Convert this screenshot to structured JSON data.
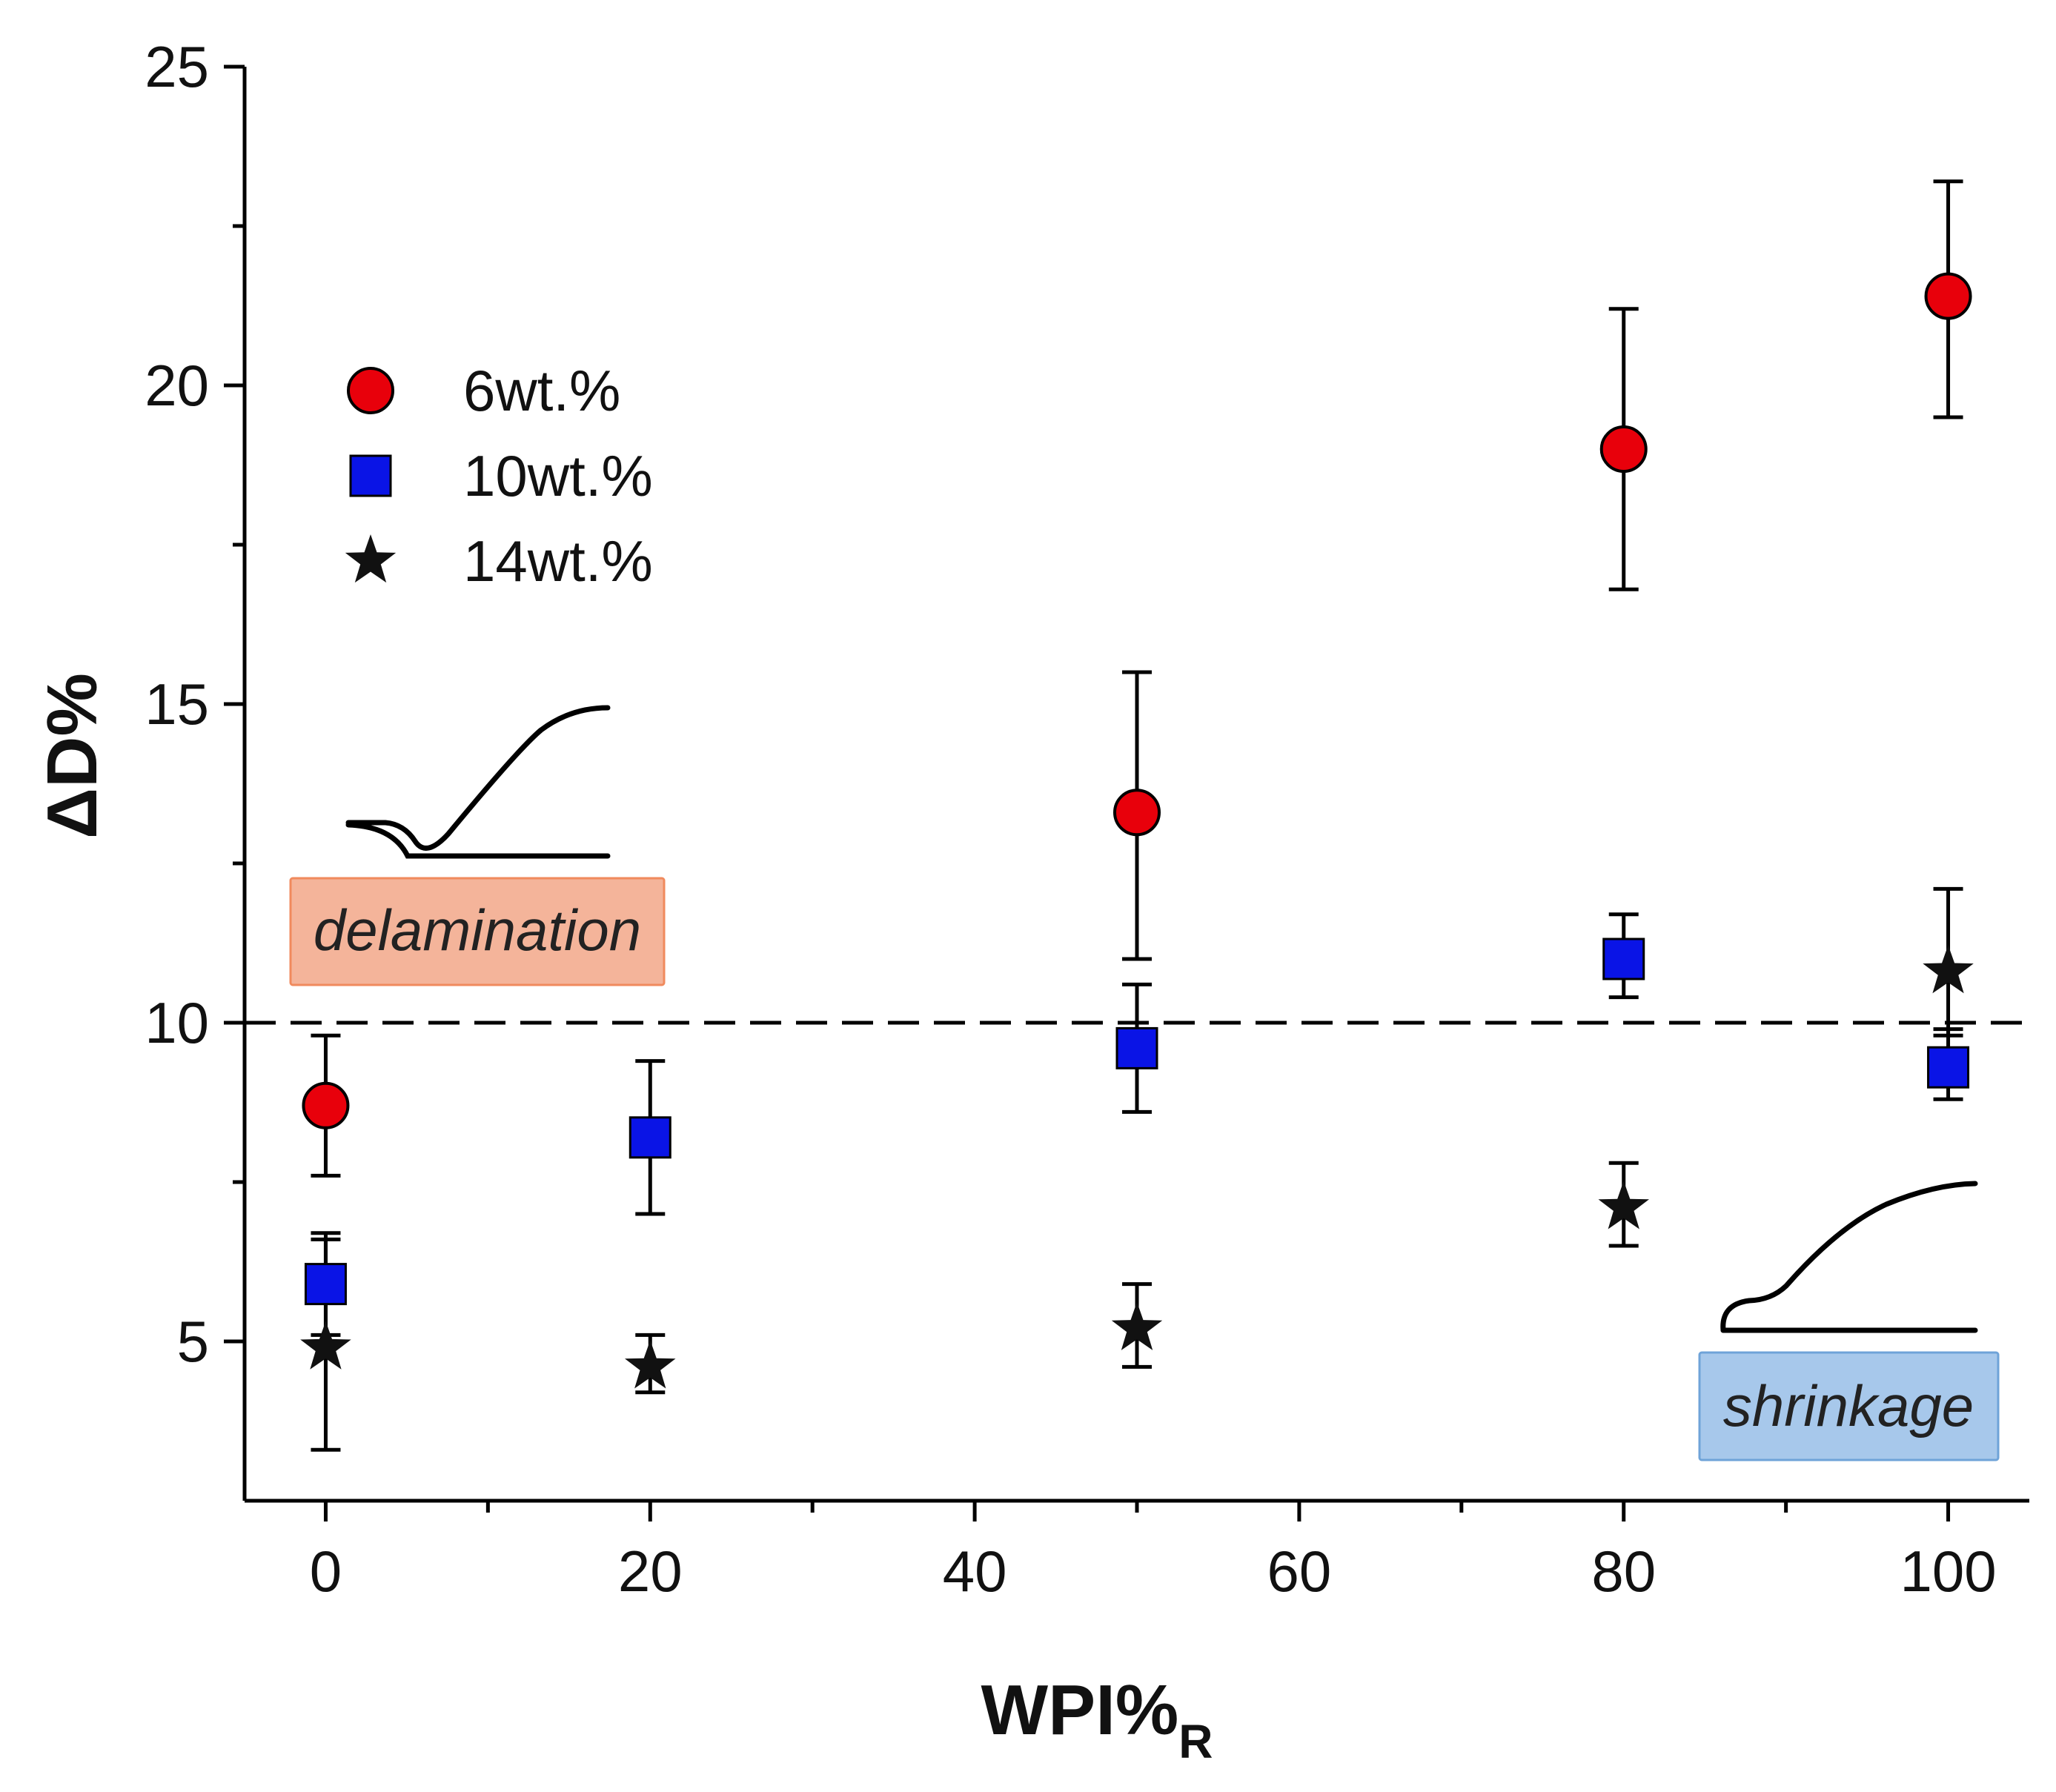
{
  "chart_data": {
    "type": "scatter",
    "title": "",
    "xlabel": "WPI%",
    "xlabel_subscript": "R",
    "ylabel": "ΔD%",
    "xlim": [
      -5,
      105
    ],
    "ylim": [
      2.5,
      25
    ],
    "x_ticks": [
      0,
      20,
      40,
      60,
      80,
      100
    ],
    "x_tick_labels": [
      "0",
      "20",
      "40",
      "60",
      "80",
      "100"
    ],
    "y_ticks": [
      5,
      10,
      15,
      20,
      25
    ],
    "y_tick_labels": [
      "5",
      "10",
      "15",
      "20",
      "25"
    ],
    "grid": false,
    "legend_position": "upper-left",
    "threshold_line": {
      "y": 10,
      "style": "dashed"
    },
    "series": [
      {
        "name": "6wt.%",
        "marker": "circle",
        "color": "#e8000b",
        "points": [
          {
            "x": 0,
            "y": 8.7,
            "err_low": 7.6,
            "err_high": 9.8
          },
          {
            "x": 50,
            "y": 13.3,
            "err_low": 11.0,
            "err_high": 15.5
          },
          {
            "x": 80,
            "y": 19.0,
            "err_low": 16.8,
            "err_high": 21.2
          },
          {
            "x": 100,
            "y": 21.4,
            "err_low": 19.5,
            "err_high": 23.2
          }
        ]
      },
      {
        "name": "10wt.%",
        "marker": "square",
        "color": "#0a14e6",
        "points": [
          {
            "x": 0,
            "y": 5.9,
            "err_low": 5.1,
            "err_high": 6.7
          },
          {
            "x": 20,
            "y": 8.2,
            "err_low": 7.0,
            "err_high": 9.4
          },
          {
            "x": 50,
            "y": 9.6,
            "err_low": 8.6,
            "err_high": 10.6
          },
          {
            "x": 80,
            "y": 11.0,
            "err_low": 10.4,
            "err_high": 11.7
          },
          {
            "x": 100,
            "y": 9.3,
            "err_low": 8.8,
            "err_high": 9.9
          }
        ]
      },
      {
        "name": "14wt.%",
        "marker": "star",
        "color": "#111111",
        "points": [
          {
            "x": 0,
            "y": 4.9,
            "err_low": 3.3,
            "err_high": 6.6
          },
          {
            "x": 20,
            "y": 4.6,
            "err_low": 4.2,
            "err_high": 5.1
          },
          {
            "x": 50,
            "y": 5.2,
            "err_low": 4.6,
            "err_high": 5.9
          },
          {
            "x": 80,
            "y": 7.1,
            "err_low": 6.5,
            "err_high": 7.8
          },
          {
            "x": 100,
            "y": 10.8,
            "err_low": 9.8,
            "err_high": 12.1
          }
        ]
      }
    ],
    "annotations": [
      {
        "text": "delamination",
        "fill": "#f4b49a",
        "border": "#f08a5d"
      },
      {
        "text": "shrinkage",
        "fill": "#a7c8eb",
        "border": "#6fa3d8"
      }
    ]
  }
}
